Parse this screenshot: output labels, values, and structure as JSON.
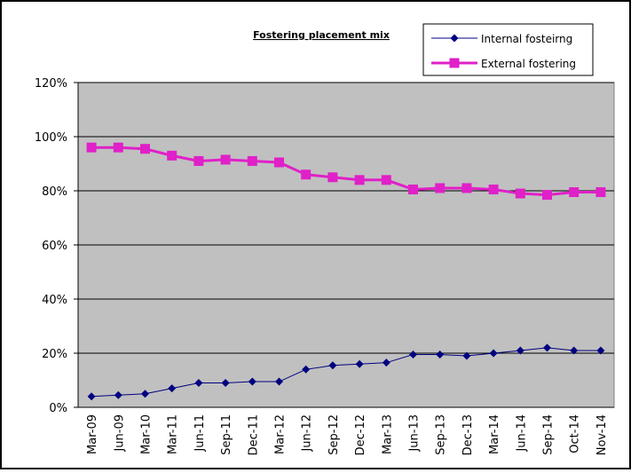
{
  "chart_data": {
    "type": "line",
    "title": "Fostering placement mix",
    "categories": [
      "Mar-09",
      "Jun-09",
      "Mar-10",
      "Mar-11",
      "Jun-11",
      "Sep-11",
      "Dec-11",
      "Mar-12",
      "Jun-12",
      "Sep-12",
      "Dec-12",
      "Mar-13",
      "Jun-13",
      "Sep-13",
      "Dec-13",
      "Mar-14",
      "Jun-14",
      "Sep-14",
      "Oct-14",
      "Nov-14"
    ],
    "series": [
      {
        "name": "Internal fosteirng",
        "color": "#000080",
        "marker": "diamond",
        "values": [
          4,
          4.5,
          5,
          7,
          9,
          9,
          9.5,
          9.5,
          14,
          15.5,
          16,
          16.5,
          19.5,
          19.5,
          19,
          20,
          21,
          22,
          21,
          21
        ]
      },
      {
        "name": "External fostering",
        "color": "#e020c8",
        "marker": "square",
        "values": [
          96,
          96,
          95.5,
          93,
          91,
          91.5,
          91,
          90.5,
          86,
          85,
          84,
          84,
          80.5,
          81,
          81,
          80.5,
          79,
          78.5,
          79.5,
          79.5
        ]
      }
    ],
    "ylim": [
      0,
      120
    ],
    "yticks": [
      {
        "value": 0,
        "label": "0%"
      },
      {
        "value": 20,
        "label": "20%"
      },
      {
        "value": 40,
        "label": "40%"
      },
      {
        "value": 60,
        "label": "60%"
      },
      {
        "value": 80,
        "label": "80%"
      },
      {
        "value": 100,
        "label": "100%"
      },
      {
        "value": 120,
        "label": "120%"
      }
    ],
    "grid": true,
    "legend": "top-right",
    "plot_background": "#c0c0c0"
  }
}
